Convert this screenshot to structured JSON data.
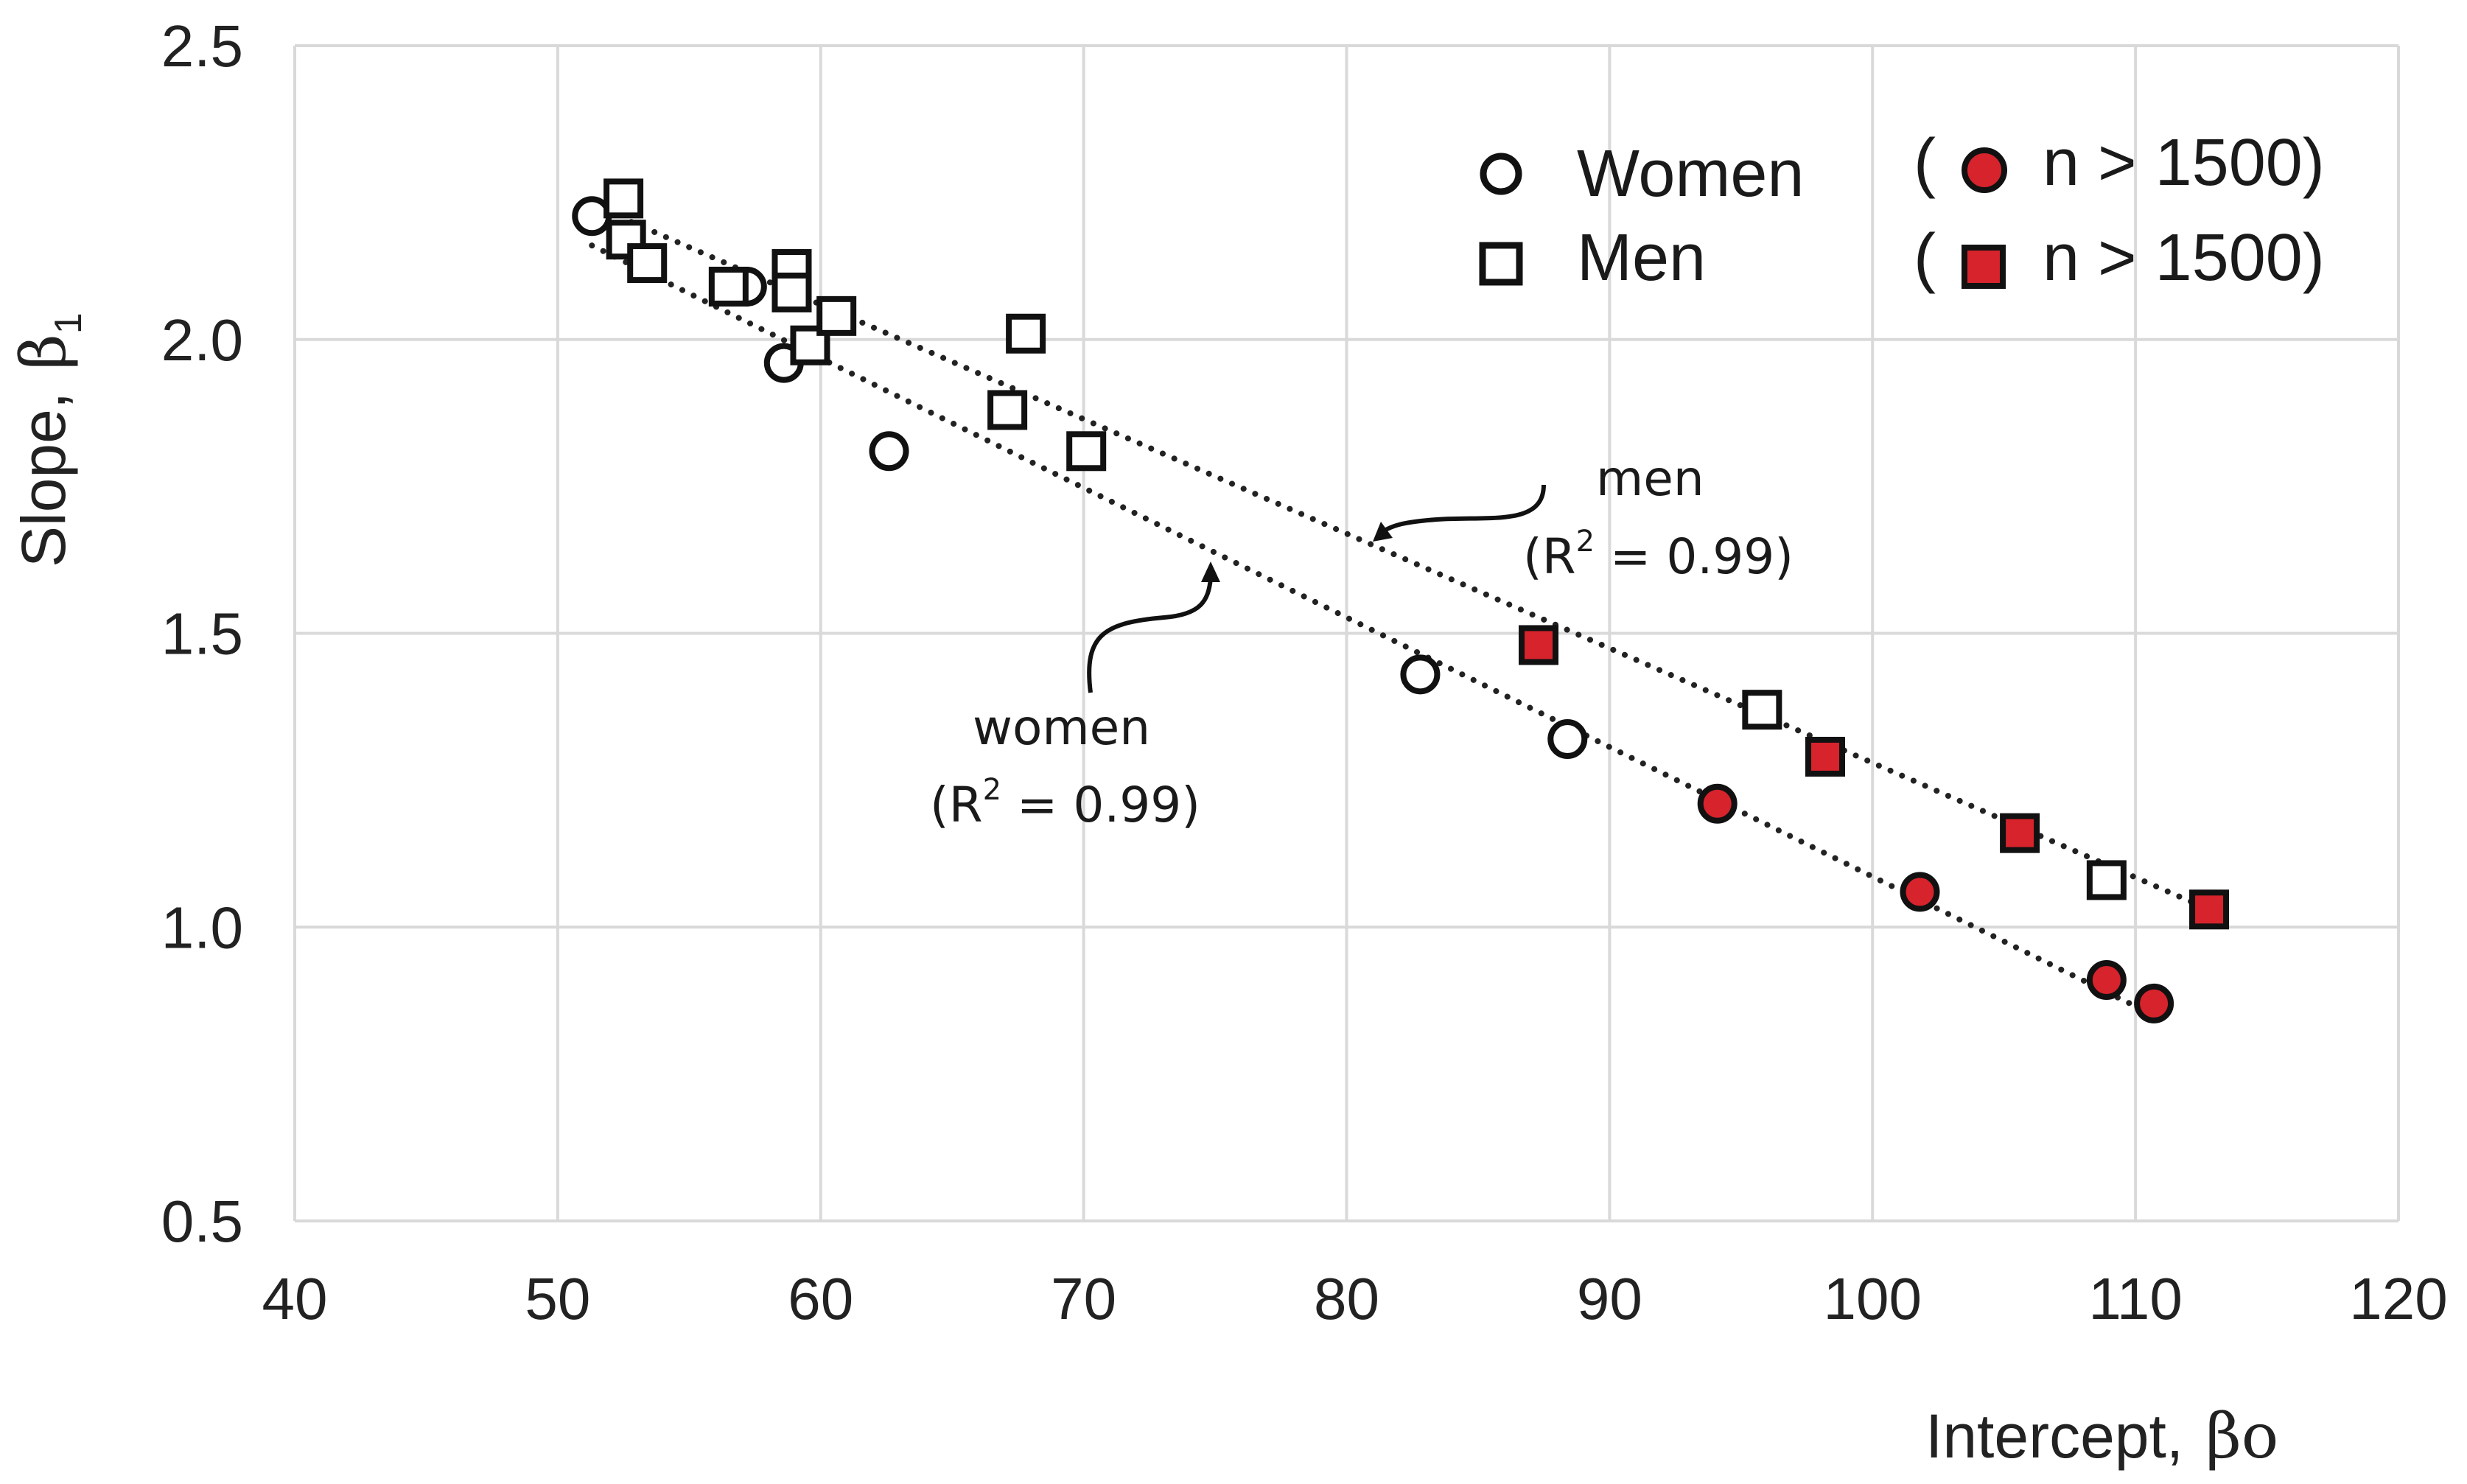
{
  "chart_data": {
    "type": "scatter",
    "title": "",
    "xlabel": "Intercept,",
    "xlabel_symbol": "βo",
    "ylabel": "Slope,",
    "ylabel_symbol": "β",
    "ylabel_subscript": "1",
    "xlim": [
      40,
      120
    ],
    "ylim": [
      0.5,
      2.5
    ],
    "xticks": [
      40,
      50,
      60,
      70,
      80,
      90,
      100,
      110,
      120
    ],
    "xtick_labels": [
      "40",
      "50",
      "60",
      "70",
      "80",
      "90",
      "100",
      "110",
      "120"
    ],
    "yticks": [
      0.5,
      1.0,
      1.5,
      2.0,
      2.5
    ],
    "ytick_labels": [
      "0.5",
      "1.0",
      "1.5",
      "2.0",
      "2.5"
    ],
    "grid": true,
    "series": [
      {
        "name": "Women",
        "marker": "circle",
        "points": [
          {
            "x": 51.3,
            "y": 2.21,
            "large_n": false
          },
          {
            "x": 56.6,
            "y": 2.09,
            "large_n": false
          },
          {
            "x": 57.2,
            "y": 2.09,
            "large_n": false
          },
          {
            "x": 58.6,
            "y": 1.96,
            "large_n": false
          },
          {
            "x": 62.6,
            "y": 1.81,
            "large_n": false
          },
          {
            "x": 82.8,
            "y": 1.43,
            "large_n": false
          },
          {
            "x": 88.4,
            "y": 1.32,
            "large_n": false
          },
          {
            "x": 94.1,
            "y": 1.21,
            "large_n": true
          },
          {
            "x": 101.8,
            "y": 1.06,
            "large_n": true
          },
          {
            "x": 108.9,
            "y": 0.91,
            "large_n": true
          },
          {
            "x": 110.7,
            "y": 0.87,
            "large_n": true
          }
        ],
        "trendline": {
          "x": [
            51.3,
            110.7
          ],
          "y": [
            2.16,
            0.85
          ]
        }
      },
      {
        "name": "Men",
        "marker": "square",
        "points": [
          {
            "x": 52.5,
            "y": 2.24,
            "large_n": false
          },
          {
            "x": 52.6,
            "y": 2.17,
            "large_n": false
          },
          {
            "x": 53.4,
            "y": 2.13,
            "large_n": false
          },
          {
            "x": 56.5,
            "y": 2.09,
            "large_n": false
          },
          {
            "x": 58.9,
            "y": 2.12,
            "large_n": false
          },
          {
            "x": 58.9,
            "y": 2.08,
            "large_n": false
          },
          {
            "x": 59.6,
            "y": 1.99,
            "large_n": false
          },
          {
            "x": 60.6,
            "y": 2.04,
            "large_n": false
          },
          {
            "x": 67.1,
            "y": 1.88,
            "large_n": false
          },
          {
            "x": 67.8,
            "y": 2.01,
            "large_n": false
          },
          {
            "x": 70.1,
            "y": 1.81,
            "large_n": false
          },
          {
            "x": 87.3,
            "y": 1.48,
            "large_n": true
          },
          {
            "x": 95.8,
            "y": 1.37,
            "large_n": false
          },
          {
            "x": 98.2,
            "y": 1.29,
            "large_n": true
          },
          {
            "x": 105.6,
            "y": 1.16,
            "large_n": true
          },
          {
            "x": 108.9,
            "y": 1.08,
            "large_n": false
          },
          {
            "x": 112.8,
            "y": 1.03,
            "large_n": true
          }
        ],
        "trendline": {
          "x": [
            52.8,
            112.8
          ],
          "y": [
            2.2,
            1.03
          ]
        }
      }
    ],
    "legend": {
      "position": "top-right",
      "women_label": "Women",
      "men_label": "Men",
      "large_n_label": "n > 1500)",
      "paren_open": "("
    },
    "annotations": {
      "men_label": "men",
      "men_r2_open": "(R",
      "men_r2_sup": "2",
      "men_r2_rest": " = 0.99)",
      "women_label": "women",
      "women_r2_open": "(R",
      "women_r2_sup": "2",
      "women_r2_rest": " = 0.99)"
    },
    "colors": {
      "open_fill": "#ffffff",
      "large_n_fill": "#d6232c",
      "marker_stroke": "#111111",
      "trendline": "#222222",
      "grid": "#d9d9d9",
      "text": "#222222"
    }
  }
}
